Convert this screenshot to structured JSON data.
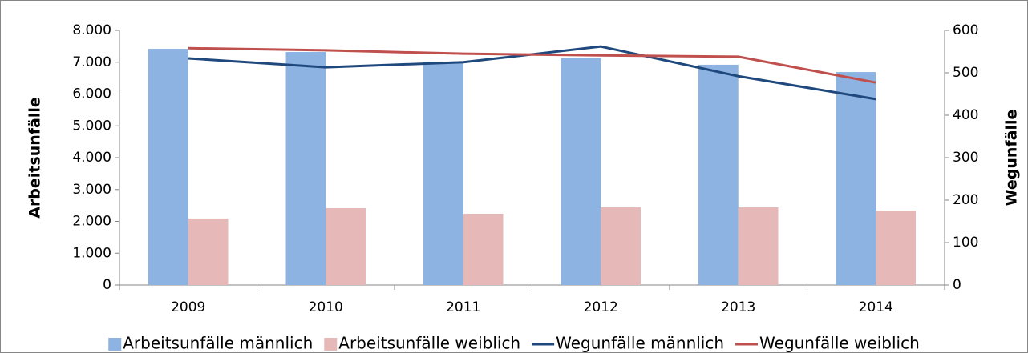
{
  "chart_data": {
    "type": "bar",
    "categories": [
      "2009",
      "2010",
      "2011",
      "2012",
      "2013",
      "2014"
    ],
    "series": [
      {
        "name": "Arbeitsunfälle männlich",
        "color": "#8db3e2",
        "type": "bar",
        "values": [
          7420,
          7320,
          7020,
          7120,
          6920,
          6690
        ]
      },
      {
        "name": "Arbeitsunfälle weiblich",
        "color": "#e6b9b8",
        "type": "bar",
        "values": [
          2090,
          2415,
          2240,
          2440,
          2440,
          2340
        ]
      },
      {
        "name": "Wegunfälle männlich",
        "color": "#1f497d",
        "type": "line",
        "axis": "y2",
        "values": [
          534,
          513,
          525,
          562,
          492,
          438
        ]
      },
      {
        "name": "Wegunfälle weiblich",
        "color": "#c0504d",
        "type": "line",
        "axis": "y2",
        "values": [
          558,
          553,
          545,
          541,
          538,
          477
        ]
      }
    ],
    "ylabel": "Arbeitsunfälle",
    "y2label": "Wegunfälle",
    "ylim": [
      0,
      8000
    ],
    "yticks": [
      0,
      {
        "value": 1000,
        "label": "1.000"
      },
      {
        "value": 2000,
        "label": "2.000"
      },
      {
        "value": 3000,
        "label": "3.000"
      },
      {
        "value": 4000,
        "label": "4.000"
      },
      {
        "value": 5000,
        "label": "5.000"
      },
      {
        "value": 6000,
        "label": "6.000"
      },
      {
        "value": 7000,
        "label": "7.000"
      },
      {
        "value": 8000,
        "label": "8.000"
      }
    ],
    "y2lim": [
      0,
      600
    ],
    "y2ticks": [
      0,
      100,
      200,
      300,
      400,
      500,
      600
    ],
    "grid": false,
    "legend": "bottom"
  }
}
